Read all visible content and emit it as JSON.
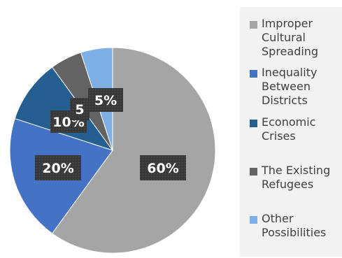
{
  "chart_data": {
    "type": "pie",
    "categories": [
      "Improper Cultural Spreading",
      "Inequality Between Districts",
      "Economic Crises",
      "The Existing Refugees",
      "Other Possibilities"
    ],
    "values": [
      60,
      20,
      10,
      5,
      5
    ],
    "data_labels": [
      "60%",
      "20%",
      "10%",
      "5",
      "5%"
    ],
    "colors": [
      "#a5a5a5",
      "#4472c4",
      "#255e91",
      "#636363",
      "#7eb0e5"
    ],
    "legend_position": "right",
    "title": ""
  },
  "legend": {
    "items": [
      {
        "label": "Improper\nCultural\nSpreading",
        "color": "#a5a5a5"
      },
      {
        "label": "Inequality\nBetween\nDistricts",
        "color": "#4472c4"
      },
      {
        "label": "Economic\nCrises",
        "color": "#255e91"
      },
      {
        "label": "The Existing\nRefugees",
        "color": "#636363"
      },
      {
        "label": "Other\nPossibilities",
        "color": "#7eb0e5"
      }
    ]
  }
}
